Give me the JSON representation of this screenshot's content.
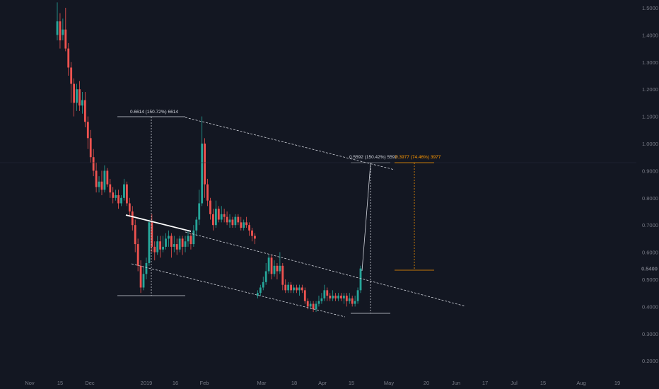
{
  "chart_data": {
    "type": "candlestick",
    "title": "",
    "last_price": "0.5400",
    "y_ticks": [
      "1.5000",
      "1.4000",
      "1.3000",
      "1.2000",
      "1.1000",
      "1.0000",
      "0.9000",
      "0.8000",
      "0.7000",
      "0.6000",
      "0.5000",
      "0.4000",
      "0.3000",
      "0.2000"
    ],
    "x_ticks": [
      "Nov",
      "15",
      "Dec",
      "2019",
      "16",
      "Feb",
      "Mar",
      "18",
      "Apr",
      "15",
      "May",
      "20",
      "Jun",
      "17",
      "Jul",
      "15",
      "Aug",
      "19"
    ],
    "ylim": [
      0.17,
      1.52
    ],
    "candles": [
      [
        1.4,
        1.45,
        1.52,
        1.38
      ],
      [
        1.45,
        1.38,
        1.48,
        1.35
      ],
      [
        1.4,
        1.42,
        1.46,
        1.38
      ],
      [
        1.42,
        1.35,
        1.5,
        1.34
      ],
      [
        1.35,
        1.28,
        1.37,
        1.25
      ],
      [
        1.28,
        1.22,
        1.3,
        1.15
      ],
      [
        1.22,
        1.15,
        1.24,
        1.1
      ],
      [
        1.15,
        1.2,
        1.22,
        1.12
      ],
      [
        1.2,
        1.14,
        1.23,
        1.12
      ],
      [
        1.14,
        1.16,
        1.19,
        1.11
      ],
      [
        1.16,
        1.08,
        1.19,
        1.06
      ],
      [
        1.08,
        1.02,
        1.1,
        0.98
      ],
      [
        1.02,
        0.95,
        1.05,
        0.93
      ],
      [
        0.95,
        0.9,
        0.98,
        0.88
      ],
      [
        0.9,
        0.84,
        0.93,
        0.82
      ],
      [
        0.84,
        0.86,
        0.88,
        0.82
      ],
      [
        0.86,
        0.83,
        0.9,
        0.81
      ],
      [
        0.83,
        0.9,
        0.92,
        0.82
      ],
      [
        0.9,
        0.85,
        0.91,
        0.84
      ],
      [
        0.85,
        0.82,
        0.87,
        0.8
      ],
      [
        0.82,
        0.8,
        0.84,
        0.78
      ],
      [
        0.8,
        0.81,
        0.83,
        0.79
      ],
      [
        0.81,
        0.78,
        0.83,
        0.76
      ],
      [
        0.78,
        0.8,
        0.81,
        0.77
      ],
      [
        0.8,
        0.85,
        0.87,
        0.79
      ],
      [
        0.85,
        0.78,
        0.86,
        0.77
      ],
      [
        0.78,
        0.75,
        0.8,
        0.73
      ],
      [
        0.75,
        0.7,
        0.77,
        0.68
      ],
      [
        0.7,
        0.63,
        0.72,
        0.6
      ],
      [
        0.63,
        0.55,
        0.65,
        0.53
      ],
      [
        0.55,
        0.47,
        0.57,
        0.45
      ],
      [
        0.47,
        0.52,
        0.55,
        0.46
      ],
      [
        0.52,
        0.56,
        0.58,
        0.5
      ],
      [
        0.56,
        0.71,
        0.72,
        0.55
      ],
      [
        0.71,
        0.62,
        0.74,
        0.6
      ],
      [
        0.62,
        0.6,
        0.64,
        0.57
      ],
      [
        0.6,
        0.64,
        0.66,
        0.59
      ],
      [
        0.64,
        0.61,
        0.66,
        0.58
      ],
      [
        0.61,
        0.62,
        0.66,
        0.6
      ],
      [
        0.62,
        0.65,
        0.67,
        0.61
      ],
      [
        0.65,
        0.66,
        0.68,
        0.62
      ],
      [
        0.66,
        0.62,
        0.67,
        0.58
      ],
      [
        0.62,
        0.63,
        0.66,
        0.6
      ],
      [
        0.63,
        0.61,
        0.65,
        0.59
      ],
      [
        0.61,
        0.65,
        0.66,
        0.6
      ],
      [
        0.65,
        0.62,
        0.66,
        0.59
      ],
      [
        0.62,
        0.64,
        0.66,
        0.6
      ],
      [
        0.64,
        0.66,
        0.68,
        0.62
      ],
      [
        0.66,
        0.63,
        0.67,
        0.61
      ],
      [
        0.63,
        0.68,
        0.7,
        0.62
      ],
      [
        0.68,
        0.72,
        0.73,
        0.66
      ],
      [
        0.72,
        0.78,
        0.83,
        0.7
      ],
      [
        0.78,
        1.0,
        1.1,
        0.77
      ],
      [
        1.0,
        0.85,
        1.02,
        0.8
      ],
      [
        0.85,
        0.79,
        0.87,
        0.77
      ],
      [
        0.79,
        0.74,
        0.8,
        0.72
      ],
      [
        0.74,
        0.7,
        0.76,
        0.68
      ],
      [
        0.7,
        0.76,
        0.79,
        0.69
      ],
      [
        0.76,
        0.72,
        0.77,
        0.71
      ],
      [
        0.72,
        0.74,
        0.77,
        0.71
      ],
      [
        0.74,
        0.73,
        0.76,
        0.71
      ],
      [
        0.73,
        0.71,
        0.75,
        0.7
      ],
      [
        0.71,
        0.72,
        0.74,
        0.69
      ],
      [
        0.72,
        0.7,
        0.73,
        0.69
      ],
      [
        0.7,
        0.73,
        0.74,
        0.69
      ],
      [
        0.73,
        0.71,
        0.74,
        0.7
      ],
      [
        0.71,
        0.69,
        0.73,
        0.68
      ],
      [
        0.69,
        0.71,
        0.72,
        0.68
      ],
      [
        0.71,
        0.7,
        0.73,
        0.69
      ],
      [
        0.7,
        0.68,
        0.71,
        0.66
      ],
      [
        0.68,
        0.66,
        0.69,
        0.64
      ],
      [
        0.66,
        0.65,
        0.67,
        0.63
      ],
      [
        0.44,
        0.45,
        0.46,
        0.43
      ],
      [
        0.45,
        0.47,
        0.48,
        0.44
      ],
      [
        0.47,
        0.49,
        0.51,
        0.46
      ],
      [
        0.49,
        0.53,
        0.56,
        0.48
      ],
      [
        0.53,
        0.58,
        0.59,
        0.52
      ],
      [
        0.58,
        0.52,
        0.59,
        0.5
      ],
      [
        0.52,
        0.55,
        0.57,
        0.51
      ],
      [
        0.55,
        0.53,
        0.56,
        0.5
      ],
      [
        0.53,
        0.55,
        0.6,
        0.52
      ],
      [
        0.55,
        0.48,
        0.56,
        0.46
      ],
      [
        0.48,
        0.46,
        0.5,
        0.45
      ],
      [
        0.46,
        0.48,
        0.49,
        0.45
      ],
      [
        0.48,
        0.46,
        0.49,
        0.45
      ],
      [
        0.46,
        0.47,
        0.48,
        0.45
      ],
      [
        0.47,
        0.46,
        0.48,
        0.45
      ],
      [
        0.46,
        0.47,
        0.48,
        0.44
      ],
      [
        0.47,
        0.46,
        0.48,
        0.45
      ],
      [
        0.46,
        0.42,
        0.47,
        0.41
      ],
      [
        0.42,
        0.4,
        0.43,
        0.39
      ],
      [
        0.4,
        0.41,
        0.42,
        0.39
      ],
      [
        0.41,
        0.39,
        0.42,
        0.38
      ],
      [
        0.39,
        0.41,
        0.42,
        0.38
      ],
      [
        0.41,
        0.42,
        0.44,
        0.4
      ],
      [
        0.42,
        0.43,
        0.45,
        0.41
      ],
      [
        0.43,
        0.46,
        0.48,
        0.42
      ],
      [
        0.46,
        0.44,
        0.47,
        0.42
      ],
      [
        0.44,
        0.43,
        0.45,
        0.42
      ],
      [
        0.43,
        0.44,
        0.46,
        0.42
      ],
      [
        0.44,
        0.43,
        0.45,
        0.42
      ],
      [
        0.43,
        0.44,
        0.45,
        0.42
      ],
      [
        0.44,
        0.43,
        0.45,
        0.42
      ],
      [
        0.43,
        0.44,
        0.45,
        0.41
      ],
      [
        0.44,
        0.42,
        0.45,
        0.4
      ],
      [
        0.42,
        0.43,
        0.45,
        0.41
      ],
      [
        0.43,
        0.41,
        0.44,
        0.4
      ],
      [
        0.41,
        0.42,
        0.44,
        0.4
      ],
      [
        0.42,
        0.46,
        0.47,
        0.41
      ],
      [
        0.46,
        0.54,
        0.55,
        0.45
      ]
    ]
  },
  "annotations": {
    "measure1": "0.6614 (150.72%) 6614",
    "measure2": "0.5592 (150.42%) 5592",
    "measure3": "0.3977 (74.46%) 3977"
  },
  "colors": {
    "background": "#131722",
    "up": "#26a69a",
    "down": "#ef5350",
    "axis_text": "#787b86",
    "projection": "#ff9800",
    "last_price_tag": "#131722"
  }
}
